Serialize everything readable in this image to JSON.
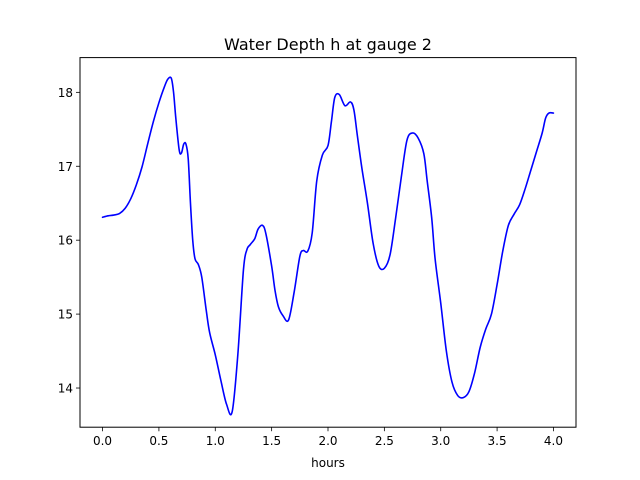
{
  "chart_data": {
    "type": "line",
    "title": "Water Depth h at gauge 2",
    "xlabel": "hours",
    "ylabel": "",
    "xlim": [
      -0.2,
      4.2
    ],
    "ylim": [
      13.47,
      18.47
    ],
    "xticks": [
      0.0,
      0.5,
      1.0,
      1.5,
      2.0,
      2.5,
      3.0,
      3.5,
      4.0
    ],
    "xtick_labels": [
      "0.0",
      "0.5",
      "1.0",
      "1.5",
      "2.0",
      "2.5",
      "3.0",
      "3.5",
      "4.0"
    ],
    "yticks": [
      14,
      15,
      16,
      17,
      18
    ],
    "ytick_labels": [
      "14",
      "15",
      "16",
      "17",
      "18"
    ],
    "grid": false,
    "series": [
      {
        "color": "#0000ff",
        "x": [
          0.0,
          0.05,
          0.1,
          0.15,
          0.2,
          0.25,
          0.3,
          0.35,
          0.4,
          0.45,
          0.5,
          0.55,
          0.58,
          0.61,
          0.63,
          0.65,
          0.68,
          0.7,
          0.72,
          0.74,
          0.76,
          0.78,
          0.8,
          0.82,
          0.85,
          0.88,
          0.92,
          0.95,
          1.0,
          1.05,
          1.1,
          1.15,
          1.2,
          1.25,
          1.28,
          1.31,
          1.35,
          1.38,
          1.42,
          1.45,
          1.5,
          1.53,
          1.56,
          1.6,
          1.65,
          1.7,
          1.75,
          1.78,
          1.82,
          1.86,
          1.9,
          1.95,
          2.0,
          2.03,
          2.06,
          2.1,
          2.15,
          2.2,
          2.23,
          2.26,
          2.3,
          2.35,
          2.4,
          2.45,
          2.5,
          2.55,
          2.6,
          2.65,
          2.7,
          2.75,
          2.8,
          2.85,
          2.88,
          2.92,
          2.95,
          3.0,
          3.05,
          3.1,
          3.15,
          3.2,
          3.25,
          3.3,
          3.35,
          3.4,
          3.45,
          3.5,
          3.55,
          3.6,
          3.65,
          3.7,
          3.75,
          3.8,
          3.85,
          3.9,
          3.93,
          3.96,
          4.0
        ],
        "y": [
          16.31,
          16.33,
          16.34,
          16.36,
          16.43,
          16.56,
          16.75,
          16.99,
          17.3,
          17.6,
          17.86,
          18.08,
          18.18,
          18.19,
          18.0,
          17.65,
          17.22,
          17.18,
          17.3,
          17.3,
          17.1,
          16.5,
          16.0,
          15.75,
          15.67,
          15.5,
          15.05,
          14.75,
          14.45,
          14.1,
          13.78,
          13.68,
          14.45,
          15.6,
          15.87,
          15.94,
          16.02,
          16.15,
          16.2,
          16.08,
          15.65,
          15.32,
          15.1,
          14.98,
          14.92,
          15.3,
          15.78,
          15.86,
          15.85,
          16.1,
          16.8,
          17.15,
          17.28,
          17.6,
          17.93,
          17.97,
          17.82,
          17.87,
          17.76,
          17.42,
          16.98,
          16.5,
          15.96,
          15.65,
          15.62,
          15.8,
          16.3,
          16.85,
          17.35,
          17.45,
          17.38,
          17.17,
          16.8,
          16.3,
          15.75,
          15.15,
          14.5,
          14.08,
          13.9,
          13.87,
          13.95,
          14.2,
          14.55,
          14.8,
          15.0,
          15.4,
          15.85,
          16.2,
          16.35,
          16.48,
          16.7,
          16.95,
          17.2,
          17.45,
          17.65,
          17.72,
          17.72
        ]
      }
    ]
  }
}
